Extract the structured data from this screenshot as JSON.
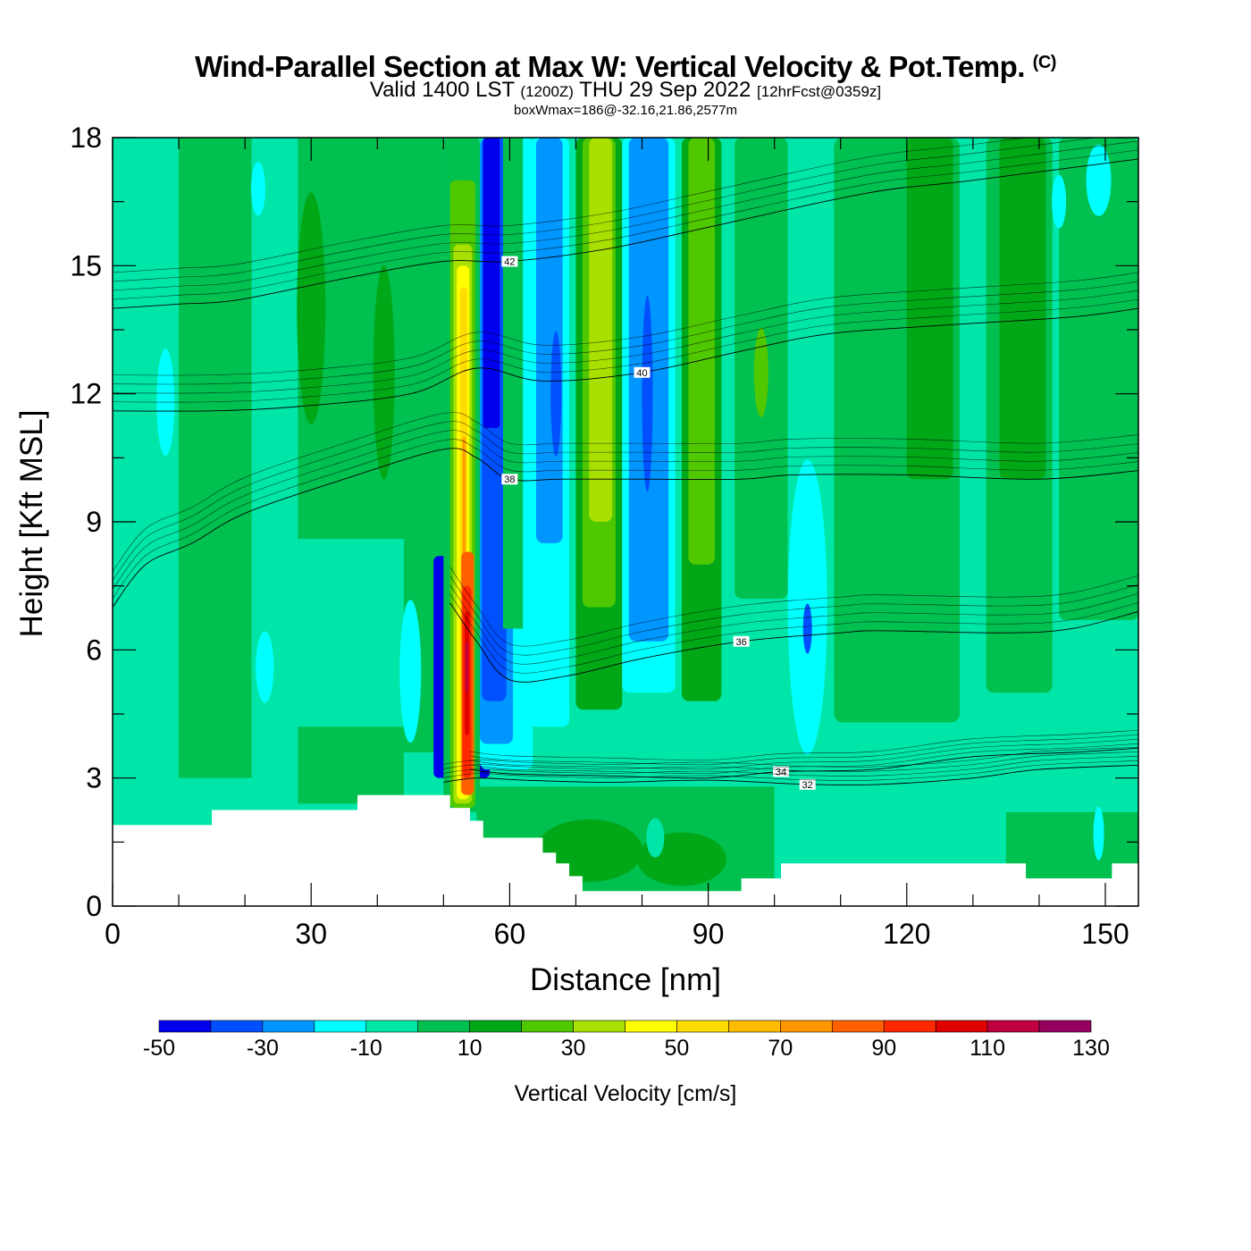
{
  "header": {
    "title": "Wind-Parallel Section at Max W: Vertical Velocity & Pot.Temp.",
    "copyright": "(C)",
    "valid_prefix": "Valid 1400 LST",
    "valid_utc": "(1200Z)",
    "valid_date": "THU 29 Sep 2022",
    "forecast": "[12hrFcst@0359z]",
    "box_info": "boxWmax=186@-32.16,21.86,2577m"
  },
  "chart_data": {
    "type": "heatmap",
    "xlabel": "Distance [nm]",
    "ylabel": "Height [Kft MSL]",
    "xlim": [
      0,
      155
    ],
    "ylim": [
      0,
      18
    ],
    "x_ticks": [
      "0",
      "30",
      "60",
      "90",
      "120",
      "150"
    ],
    "y_ticks": [
      "0",
      "3",
      "6",
      "9",
      "12",
      "15",
      "18"
    ],
    "x_tick_values": [
      0,
      30,
      60,
      90,
      120,
      150
    ],
    "y_tick_values": [
      0,
      3,
      6,
      9,
      12,
      15,
      18
    ],
    "colorbar": {
      "title": "Vertical Velocity [cm/s]",
      "labels": [
        "-50",
        "-30",
        "-10",
        "10",
        "30",
        "50",
        "70",
        "90",
        "110",
        "130"
      ],
      "levels": [
        -50,
        -40,
        -30,
        -20,
        -10,
        0,
        10,
        20,
        30,
        40,
        50,
        60,
        70,
        80,
        90,
        100,
        110,
        120,
        130
      ],
      "colors": [
        "#0000ee",
        "#0050ff",
        "#0096ff",
        "#00ffff",
        "#00e6a8",
        "#00c050",
        "#00a818",
        "#50c800",
        "#a8e000",
        "#ffff00",
        "#ffdc00",
        "#ffbc00",
        "#ff9600",
        "#ff6000",
        "#ff2800",
        "#e00000",
        "#c00040",
        "#980060"
      ]
    },
    "terrain_kft": [
      [
        0,
        1.9
      ],
      [
        15,
        1.9
      ],
      [
        15,
        2.25
      ],
      [
        37,
        2.25
      ],
      [
        37,
        2.6
      ],
      [
        51,
        2.6
      ],
      [
        51,
        2.3
      ],
      [
        54,
        2.3
      ],
      [
        54,
        2.0
      ],
      [
        56,
        2.0
      ],
      [
        56,
        1.6
      ],
      [
        65,
        1.6
      ],
      [
        65,
        1.25
      ],
      [
        67,
        1.25
      ],
      [
        67,
        1.0
      ],
      [
        69,
        1.0
      ],
      [
        69,
        0.7
      ],
      [
        71,
        0.7
      ],
      [
        71,
        0.35
      ],
      [
        95,
        0.35
      ],
      [
        95,
        0.65
      ],
      [
        101,
        0.65
      ],
      [
        101,
        1.0
      ],
      [
        138,
        1.0
      ],
      [
        138,
        0.65
      ],
      [
        151,
        0.65
      ],
      [
        151,
        1.0
      ],
      [
        155,
        1.0
      ]
    ],
    "theta_contours": [
      {
        "label": "32",
        "points": [
          [
            50,
            2.9
          ],
          [
            55,
            3.0
          ],
          [
            62,
            2.95
          ],
          [
            75,
            2.9
          ],
          [
            90,
            2.95
          ],
          [
            105,
            2.85
          ],
          [
            116,
            2.85
          ],
          [
            130,
            3.0
          ],
          [
            140,
            3.2
          ],
          [
            155,
            3.3
          ]
        ]
      },
      {
        "label": "34",
        "points": [
          [
            54,
            3.2
          ],
          [
            60,
            3.1
          ],
          [
            75,
            3.05
          ],
          [
            90,
            3.0
          ],
          [
            101,
            3.15
          ],
          [
            115,
            3.2
          ],
          [
            130,
            3.5
          ],
          [
            145,
            3.6
          ],
          [
            155,
            3.7
          ]
        ]
      },
      {
        "label": "36",
        "points": [
          [
            51,
            7.1
          ],
          [
            55,
            6.2
          ],
          [
            60,
            5.3
          ],
          [
            69,
            5.4
          ],
          [
            80,
            5.8
          ],
          [
            95,
            6.2
          ],
          [
            110,
            6.4
          ],
          [
            116,
            6.45
          ],
          [
            135,
            6.4
          ],
          [
            145,
            6.5
          ],
          [
            155,
            6.9
          ]
        ]
      },
      {
        "label": "38",
        "points": [
          [
            0,
            7.0
          ],
          [
            5,
            8.0
          ],
          [
            12,
            8.5
          ],
          [
            20,
            9.2
          ],
          [
            35,
            10.0
          ],
          [
            50,
            10.7
          ],
          [
            55,
            10.5
          ],
          [
            60,
            10.0
          ],
          [
            68,
            10.0
          ],
          [
            80,
            10.0
          ],
          [
            95,
            10.0
          ],
          [
            103,
            10.1
          ],
          [
            120,
            10.1
          ],
          [
            140,
            10.0
          ],
          [
            155,
            10.2
          ]
        ]
      },
      {
        "label": "40",
        "points": [
          [
            0,
            11.6
          ],
          [
            15,
            11.6
          ],
          [
            28,
            11.7
          ],
          [
            45,
            12.0
          ],
          [
            55,
            12.6
          ],
          [
            65,
            12.3
          ],
          [
            80,
            12.5
          ],
          [
            95,
            13.0
          ],
          [
            108,
            13.4
          ],
          [
            125,
            13.6
          ],
          [
            145,
            13.8
          ],
          [
            155,
            14.0
          ]
        ]
      },
      {
        "label": "42",
        "points": [
          [
            0,
            14.0
          ],
          [
            10,
            14.1
          ],
          [
            19,
            14.2
          ],
          [
            35,
            14.7
          ],
          [
            50,
            15.1
          ],
          [
            60,
            15.1
          ],
          [
            75,
            15.4
          ],
          [
            90,
            15.9
          ],
          [
            114,
            16.7
          ],
          [
            130,
            17.0
          ],
          [
            155,
            17.5
          ]
        ]
      }
    ]
  }
}
